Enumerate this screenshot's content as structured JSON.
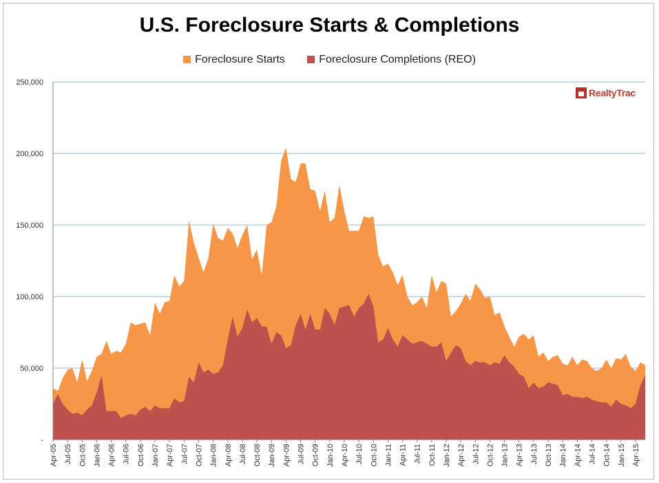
{
  "chart_data": {
    "type": "area",
    "title": "U.S. Foreclosure Starts & Completions",
    "xlabel": "",
    "ylabel": "",
    "ylim": [
      0,
      250000
    ],
    "yticks": [
      0,
      50000,
      100000,
      150000,
      200000,
      250000
    ],
    "ytick_labels": [
      "-",
      "50,000",
      "100,000",
      "150,000",
      "200,000",
      "250,000"
    ],
    "grid": "horizontal",
    "legend_position": "top",
    "colors": {
      "starts": "#f79646",
      "completions": "#c0504d",
      "grid": "#9fb7d6"
    },
    "x_labels": [
      "Apr-05",
      "Jul-05",
      "Oct-05",
      "Jan-06",
      "Apr-06",
      "Jul-06",
      "Oct-06",
      "Jan-07",
      "Apr-07",
      "Jul-07",
      "Oct-07",
      "Jan-08",
      "Apr-08",
      "Jul-08",
      "Oct-08",
      "Jan-09",
      "Apr-09",
      "Jul-09",
      "Oct-09",
      "Jan-10",
      "Apr-10",
      "Jul-10",
      "Oct-10",
      "Jan-11",
      "Apr-11",
      "Jul-11",
      "Oct-11",
      "Jan-12",
      "Apr-12",
      "Jul-12",
      "Oct-12",
      "Jan-13",
      "Apr-13",
      "Jul-13",
      "Oct-13",
      "Jan-14",
      "Apr-14",
      "Jul-14",
      "Oct-14",
      "Jan-15",
      "Apr-15"
    ],
    "series": [
      {
        "name": "Foreclosure Starts",
        "values": [
          36000,
          34000,
          43000,
          49000,
          50000,
          40000,
          56000,
          41000,
          48000,
          58000,
          60000,
          69000,
          60000,
          62000,
          61000,
          67000,
          82000,
          80000,
          81000,
          82000,
          73000,
          96000,
          88000,
          96000,
          97000,
          115000,
          107000,
          111000,
          153000,
          138000,
          127000,
          117000,
          127000,
          151000,
          141000,
          139000,
          148000,
          144000,
          134000,
          143000,
          150000,
          126000,
          133000,
          115000,
          150000,
          152000,
          163000,
          195000,
          204000,
          182000,
          180000,
          193000,
          193000,
          175000,
          174000,
          160000,
          174000,
          152000,
          155000,
          178000,
          160000,
          146000,
          146000,
          146000,
          156000,
          155000,
          156000,
          129000,
          121000,
          123000,
          117000,
          108000,
          115000,
          100000,
          94000,
          96000,
          100000,
          92000,
          115000,
          103000,
          111000,
          109000,
          86000,
          90000,
          95000,
          102000,
          97000,
          109000,
          105000,
          99000,
          100000,
          87000,
          89000,
          79000,
          72000,
          65000,
          72000,
          74000,
          70000,
          73000,
          58000,
          61000,
          55000,
          58000,
          59000,
          53000,
          52000,
          58000,
          52000,
          56000,
          55000,
          50000,
          48000,
          50000,
          56000,
          50000,
          57000,
          56000,
          60000,
          51000,
          48000,
          54000,
          52000
        ]
      },
      {
        "name": "Foreclosure Completions (REO)",
        "values": [
          25000,
          32000,
          25000,
          21000,
          18000,
          19000,
          17000,
          21000,
          24000,
          33000,
          45000,
          20000,
          20000,
          20000,
          15000,
          17000,
          18000,
          17000,
          21000,
          23000,
          20000,
          24000,
          22000,
          22000,
          22000,
          29000,
          26000,
          27000,
          44000,
          40000,
          54000,
          47000,
          49000,
          46000,
          47000,
          52000,
          70000,
          86000,
          72000,
          78000,
          91000,
          82000,
          85000,
          79000,
          79000,
          67000,
          75000,
          73000,
          64000,
          66000,
          80000,
          88000,
          77000,
          88000,
          77000,
          77000,
          92000,
          88000,
          80000,
          92000,
          93000,
          94000,
          86000,
          92000,
          95000,
          102000,
          93000,
          68000,
          70000,
          78000,
          70000,
          65000,
          73000,
          70000,
          67000,
          68000,
          69000,
          67000,
          65000,
          65000,
          68000,
          55000,
          61000,
          66000,
          64000,
          55000,
          52000,
          55000,
          54000,
          54000,
          52000,
          54000,
          53000,
          59000,
          54000,
          51000,
          46000,
          44000,
          36000,
          40000,
          36000,
          37000,
          40000,
          39000,
          38000,
          31000,
          32000,
          30000,
          30000,
          29000,
          30000,
          28000,
          27000,
          26000,
          26000,
          23000,
          28000,
          25000,
          24000,
          22000,
          25000,
          38000,
          45000
        ]
      }
    ]
  },
  "legend": {
    "starts_label": "Foreclosure Starts",
    "completions_label": "Foreclosure Completions (REO)"
  },
  "logo": {
    "text": "RealtyTrac"
  }
}
